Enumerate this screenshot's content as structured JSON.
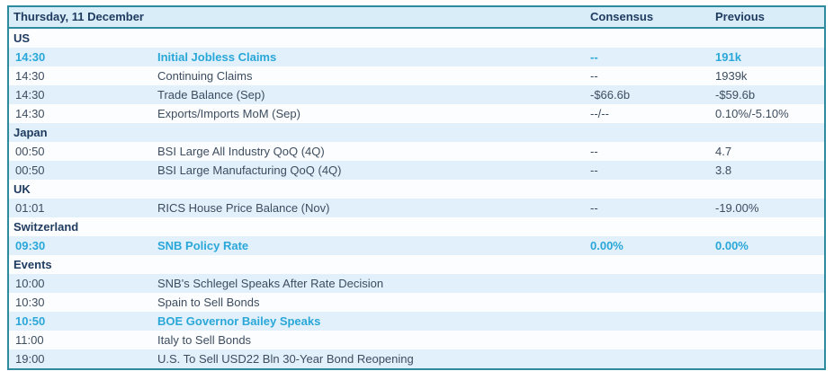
{
  "header": {
    "date_label": "Thursday, 11 December",
    "consensus_label": "Consensus",
    "previous_label": "Previous"
  },
  "colors": {
    "border_teal": "#2e8b9e",
    "header_bg": "#d9edf9",
    "shaded_row_bg": "#e1f0fa",
    "plain_row_bg": "#fcfdfe",
    "navy_text": "#1e3a5f",
    "body_text": "#3d4d60",
    "highlight_cyan": "#2aa7d9"
  },
  "rows": [
    {
      "type": "section",
      "label": "US"
    },
    {
      "type": "event",
      "time": "14:30",
      "event": "Initial Jobless Claims",
      "consensus": "--",
      "previous": "191k",
      "highlight": true
    },
    {
      "type": "event",
      "time": "14:30",
      "event": "Continuing Claims",
      "consensus": "--",
      "previous": "1939k",
      "highlight": false
    },
    {
      "type": "event",
      "time": "14:30",
      "event": "Trade Balance (Sep)",
      "consensus": "-$66.6b",
      "previous": "-$59.6b",
      "highlight": false
    },
    {
      "type": "event",
      "time": "14:30",
      "event": "Exports/Imports MoM (Sep)",
      "consensus": "--/--",
      "previous": "0.10%/-5.10%",
      "highlight": false
    },
    {
      "type": "section",
      "label": "Japan"
    },
    {
      "type": "event",
      "time": "00:50",
      "event": "BSI Large All Industry QoQ (4Q)",
      "consensus": "--",
      "previous": "4.7",
      "highlight": false
    },
    {
      "type": "event",
      "time": "00:50",
      "event": "BSI Large Manufacturing QoQ (4Q)",
      "consensus": "--",
      "previous": "3.8",
      "highlight": false
    },
    {
      "type": "section",
      "label": "UK"
    },
    {
      "type": "event",
      "time": "01:01",
      "event": "RICS House Price Balance (Nov)",
      "consensus": "--",
      "previous": "-19.00%",
      "highlight": false
    },
    {
      "type": "section",
      "label": "Switzerland"
    },
    {
      "type": "event",
      "time": "09:30",
      "event": "SNB Policy Rate",
      "consensus": "0.00%",
      "previous": "0.00%",
      "highlight": true
    },
    {
      "type": "section",
      "label": "Events"
    },
    {
      "type": "event",
      "time": "10:00",
      "event": "SNB's Schlegel Speaks After Rate Decision",
      "consensus": "",
      "previous": "",
      "highlight": false
    },
    {
      "type": "event",
      "time": "10:30",
      "event": "Spain to Sell Bonds",
      "consensus": "",
      "previous": "",
      "highlight": false
    },
    {
      "type": "event",
      "time": "10:50",
      "event": "BOE Governor Bailey Speaks",
      "consensus": "",
      "previous": "",
      "highlight": true
    },
    {
      "type": "event",
      "time": "11:00",
      "event": "Italy to Sell Bonds",
      "consensus": "",
      "previous": "",
      "highlight": false
    },
    {
      "type": "event",
      "time": "19:00",
      "event": "U.S. To Sell USD22 Bln 30-Year Bond Reopening",
      "consensus": "",
      "previous": "",
      "highlight": false
    }
  ]
}
